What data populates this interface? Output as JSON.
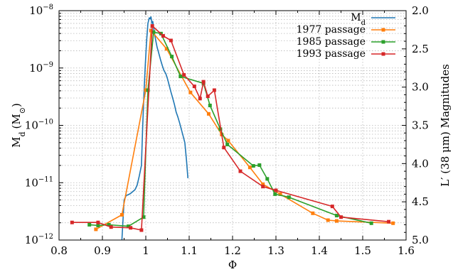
{
  "chart_data": {
    "type": "line",
    "xlabel": "Φ",
    "ylabel": "M",
    "ylabel_sub": "d",
    "ylabel_unit": "(M",
    "ylabel_unit_sym": "⊙",
    "ylabel_unit_close": ")",
    "y2label": "L′ (38 μm) Magnitudes",
    "xlim": [
      0.8,
      1.6
    ],
    "ylim": [
      1e-12,
      1e-08
    ],
    "yscale": "log",
    "y2lim": [
      2.0,
      5.0
    ],
    "grid": true,
    "legend_position": "top-right",
    "x_ticks": [
      "0.8",
      "0.9",
      "1",
      "1.1",
      "1.2",
      "1.3",
      "1.4",
      "1.5",
      "1.6"
    ],
    "x_tick_values": [
      0.8,
      0.9,
      1.0,
      1.1,
      1.2,
      1.3,
      1.4,
      1.5,
      1.6
    ],
    "y_ticks": [
      {
        "value": 1e-12,
        "base": "10",
        "exp": "−12"
      },
      {
        "value": 1e-11,
        "base": "10",
        "exp": "−11"
      },
      {
        "value": 1e-10,
        "base": "10",
        "exp": "−10"
      },
      {
        "value": 1e-09,
        "base": "10",
        "exp": "−9"
      },
      {
        "value": 1e-08,
        "base": "10",
        "exp": "−8"
      }
    ],
    "y2_ticks": [
      "2.0",
      "2.5",
      "3.0",
      "3.5",
      "4.0",
      "4.5",
      "5.0"
    ],
    "y2_tick_values": [
      2.0,
      2.5,
      3.0,
      3.5,
      4.0,
      4.5,
      5.0
    ],
    "series": [
      {
        "name": "M",
        "name_sub": "d",
        "axis": "left",
        "color": "#1f77b4",
        "marker": "none",
        "x": [
          0.945,
          0.95,
          0.955,
          0.96,
          0.965,
          0.97,
          0.975,
          0.98,
          0.985,
          0.99,
          0.993,
          0.996,
          0.999,
          1.002,
          1.005,
          1.008,
          1.01,
          1.012,
          1.014,
          1.016,
          1.018,
          1.02,
          1.023,
          1.026,
          1.03,
          1.034,
          1.038,
          1.042,
          1.046,
          1.05,
          1.054,
          1.058,
          1.062,
          1.066,
          1.07,
          1.074,
          1.078,
          1.082,
          1.086,
          1.09,
          1.094,
          1.097
        ],
        "y": [
          1e-12,
          5e-12,
          6e-12,
          6.2e-12,
          6.5e-12,
          7e-12,
          7.5e-12,
          9e-12,
          1.3e-11,
          2e-11,
          1e-10,
          4e-10,
          1.2e-09,
          3e-09,
          6e-09,
          7.5e-09,
          7.2e-09,
          7.8e-09,
          6e-09,
          6.5e-09,
          5e-09,
          4e-09,
          3e-09,
          2.3e-09,
          1.8e-09,
          1.4e-09,
          1.1e-09,
          9e-10,
          8e-10,
          6.5e-10,
          5e-10,
          3.8e-10,
          3e-10,
          2.3e-10,
          1.7e-10,
          1.4e-10,
          1.1e-10,
          8.5e-11,
          6.5e-11,
          5e-11,
          2.4e-11,
          1.2e-11
        ]
      },
      {
        "name": "1977 passage",
        "axis": "right",
        "color": "#ff7f0e",
        "marker": "square",
        "x": [
          0.885,
          0.945,
          1.0,
          1.012,
          1.048,
          1.103,
          1.145,
          1.175,
          1.19,
          1.24,
          1.27,
          1.31,
          1.385,
          1.42,
          1.44,
          1.57
        ],
        "y": [
          4.86,
          4.67,
          3.04,
          2.26,
          2.5,
          3.07,
          3.35,
          3.62,
          3.7,
          4.05,
          4.27,
          4.4,
          4.65,
          4.74,
          4.75,
          4.78
        ]
      },
      {
        "name": "1985 passage",
        "axis": "right",
        "color": "#2ca02c",
        "marker": "square",
        "x": [
          0.87,
          0.89,
          0.915,
          0.96,
          0.995,
          1.005,
          1.018,
          1.035,
          1.06,
          1.08,
          1.133,
          1.148,
          1.172,
          1.188,
          1.248,
          1.262,
          1.28,
          1.298,
          1.33,
          1.44,
          1.52
        ],
        "y": [
          4.8,
          4.81,
          4.8,
          4.82,
          4.7,
          3.04,
          2.28,
          2.3,
          2.6,
          2.86,
          2.95,
          3.24,
          3.55,
          3.75,
          4.03,
          4.02,
          4.2,
          4.4,
          4.44,
          4.68,
          4.78
        ]
      },
      {
        "name": "1993 passage",
        "axis": "right",
        "color": "#d62728",
        "marker": "square",
        "x": [
          0.83,
          0.89,
          0.92,
          0.965,
          0.99,
          1.015,
          1.04,
          1.058,
          1.088,
          1.112,
          1.125,
          1.133,
          1.143,
          1.158,
          1.18,
          1.218,
          1.27,
          1.3,
          1.43,
          1.45,
          1.56
        ],
        "y": [
          4.77,
          4.77,
          4.83,
          4.84,
          4.87,
          2.2,
          2.33,
          2.39,
          2.84,
          2.99,
          3.15,
          2.93,
          3.12,
          3.04,
          3.79,
          4.1,
          4.3,
          4.35,
          4.56,
          4.7,
          4.76
        ]
      }
    ]
  }
}
